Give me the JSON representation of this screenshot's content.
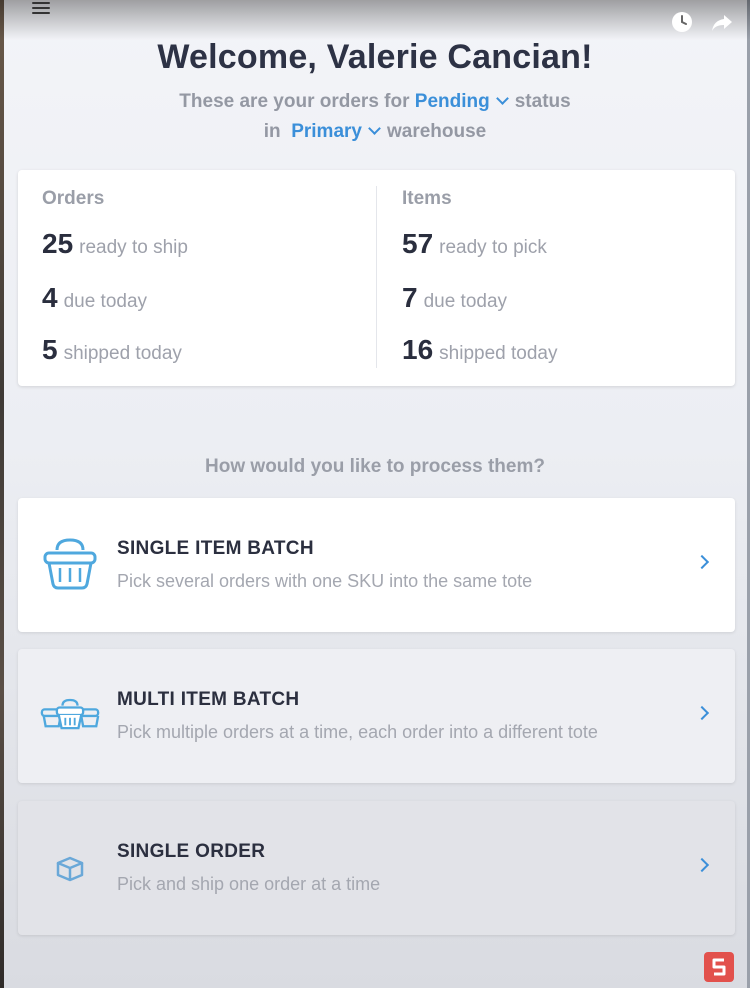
{
  "header": {
    "welcome": "Welcome, Valerie Cancian!",
    "status_prefix": "These are your orders for",
    "status_value": "Pending",
    "status_suffix": "status",
    "warehouse_prefix": "in",
    "warehouse_value": "Primary",
    "warehouse_suffix": "warehouse"
  },
  "stats": {
    "orders": {
      "title": "Orders",
      "rows": [
        {
          "num": "25",
          "text": "ready to ship"
        },
        {
          "num": "4",
          "text": "due today"
        },
        {
          "num": "5",
          "text": "shipped today"
        }
      ]
    },
    "items": {
      "title": "Items",
      "rows": [
        {
          "num": "57",
          "text": "ready to pick"
        },
        {
          "num": "7",
          "text": "due today"
        },
        {
          "num": "16",
          "text": "shipped today"
        }
      ]
    }
  },
  "question": "How would you like to process them?",
  "options": [
    {
      "title": "SINGLE ITEM BATCH",
      "desc": "Pick several orders with one SKU into the same tote",
      "icon": "basket-icon"
    },
    {
      "title": "MULTI ITEM BATCH",
      "desc": "Pick multiple orders at a time, each order into a different tote",
      "icon": "multi-basket-icon"
    },
    {
      "title": "SINGLE ORDER",
      "desc": "Pick and ship one order at a time",
      "icon": "box-icon"
    }
  ],
  "colors": {
    "accent": "#3b8fd9",
    "title": "#2d3245",
    "muted": "#9a9ea8",
    "logo": "#e2514c"
  }
}
